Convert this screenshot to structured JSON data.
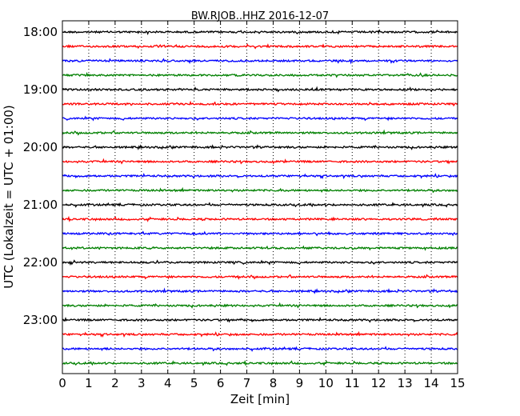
{
  "chart_data": {
    "type": "line",
    "title": "BW.RJOB..HHZ 2016-12-07",
    "xlabel": "Zeit  [min]",
    "ylabel": "UTC (Lokalzeit = UTC + 01:00)",
    "xlim": [
      0,
      15
    ],
    "x_ticks": [
      "0",
      "1",
      "2",
      "3",
      "4",
      "5",
      "6",
      "7",
      "8",
      "9",
      "10",
      "11",
      "12",
      "13",
      "14",
      "15"
    ],
    "y_ticks": [
      "18:00",
      "19:00",
      "20:00",
      "21:00",
      "22:00",
      "23:00"
    ],
    "grid": "vertical dotted",
    "trace_colors": [
      "#000000",
      "#ff0000",
      "#0000ff",
      "#008000"
    ],
    "series": [
      {
        "start": "18:00",
        "color": "#000000"
      },
      {
        "start": "18:15",
        "color": "#ff0000"
      },
      {
        "start": "18:30",
        "color": "#0000ff"
      },
      {
        "start": "18:45",
        "color": "#008000"
      },
      {
        "start": "19:00",
        "color": "#000000"
      },
      {
        "start": "19:15",
        "color": "#ff0000"
      },
      {
        "start": "19:30",
        "color": "#0000ff"
      },
      {
        "start": "19:45",
        "color": "#008000"
      },
      {
        "start": "20:00",
        "color": "#000000"
      },
      {
        "start": "20:15",
        "color": "#ff0000"
      },
      {
        "start": "20:30",
        "color": "#0000ff"
      },
      {
        "start": "20:45",
        "color": "#008000"
      },
      {
        "start": "21:00",
        "color": "#000000"
      },
      {
        "start": "21:15",
        "color": "#ff0000"
      },
      {
        "start": "21:30",
        "color": "#0000ff"
      },
      {
        "start": "21:45",
        "color": "#008000"
      },
      {
        "start": "22:00",
        "color": "#000000"
      },
      {
        "start": "22:15",
        "color": "#ff0000"
      },
      {
        "start": "22:30",
        "color": "#0000ff"
      },
      {
        "start": "22:45",
        "color": "#008000"
      },
      {
        "start": "23:00",
        "color": "#000000"
      },
      {
        "start": "23:15",
        "color": "#ff0000"
      },
      {
        "start": "23:30",
        "color": "#0000ff"
      },
      {
        "start": "23:45",
        "color": "#008000"
      }
    ]
  }
}
